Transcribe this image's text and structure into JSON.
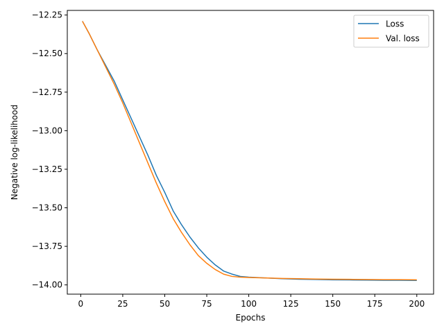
{
  "chart_data": {
    "type": "line",
    "title": "",
    "xlabel": "Epochs",
    "ylabel": "Negative log-likelihood",
    "xlim": [
      -8,
      210
    ],
    "ylim": [
      -14.06,
      -12.22
    ],
    "x_ticks": [
      0,
      25,
      50,
      75,
      100,
      125,
      150,
      175,
      200
    ],
    "x_tick_labels": [
      "0",
      "25",
      "50",
      "75",
      "100",
      "125",
      "150",
      "175",
      "200"
    ],
    "y_ticks": [
      -12.25,
      -12.5,
      -12.75,
      -13.0,
      -13.25,
      -13.5,
      -13.75,
      -14.0
    ],
    "y_tick_labels": [
      "−12.25",
      "−12.50",
      "−12.75",
      "−13.00",
      "−13.25",
      "−13.50",
      "−13.75",
      "−14.00"
    ],
    "grid": false,
    "legend_position": "top-right",
    "series": [
      {
        "name": "Loss",
        "color": "#1f77b4",
        "x": [
          1,
          5,
          10,
          15,
          20,
          25,
          30,
          35,
          40,
          45,
          50,
          55,
          60,
          65,
          70,
          75,
          80,
          85,
          90,
          95,
          100,
          110,
          120,
          130,
          140,
          150,
          160,
          170,
          180,
          190,
          200
        ],
        "y": [
          -12.29,
          -12.37,
          -12.48,
          -12.58,
          -12.68,
          -12.8,
          -12.92,
          -13.04,
          -13.16,
          -13.29,
          -13.4,
          -13.52,
          -13.61,
          -13.69,
          -13.76,
          -13.82,
          -13.87,
          -13.91,
          -13.93,
          -13.945,
          -13.95,
          -13.955,
          -13.96,
          -13.963,
          -13.965,
          -13.967,
          -13.968,
          -13.969,
          -13.97,
          -13.97,
          -13.971
        ]
      },
      {
        "name": "Val. loss",
        "color": "#ff7f0e",
        "x": [
          1,
          5,
          10,
          15,
          20,
          25,
          30,
          35,
          40,
          45,
          50,
          55,
          60,
          65,
          70,
          75,
          80,
          85,
          90,
          95,
          100,
          110,
          120,
          130,
          140,
          150,
          160,
          170,
          180,
          190,
          200
        ],
        "y": [
          -12.29,
          -12.37,
          -12.48,
          -12.59,
          -12.7,
          -12.82,
          -12.95,
          -13.08,
          -13.21,
          -13.34,
          -13.46,
          -13.57,
          -13.66,
          -13.74,
          -13.81,
          -13.86,
          -13.9,
          -13.93,
          -13.945,
          -13.95,
          -13.952,
          -13.955,
          -13.958,
          -13.96,
          -13.962,
          -13.963,
          -13.964,
          -13.965,
          -13.966,
          -13.966,
          -13.967
        ]
      }
    ]
  }
}
